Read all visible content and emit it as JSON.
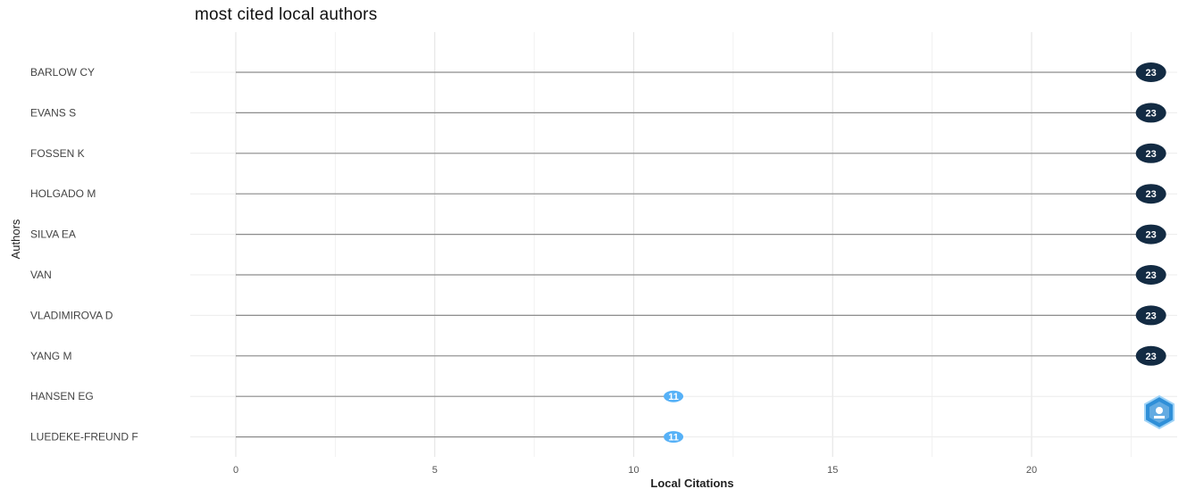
{
  "title": "most cited local authors",
  "chart_data": {
    "type": "lollipop",
    "title": "most cited local authors",
    "xlabel": "Local Citations",
    "ylabel": "Authors",
    "xlim": [
      -1,
      23.5
    ],
    "x_ticks": [
      0,
      5,
      10,
      15,
      20
    ],
    "grid": true,
    "categories": [
      "BARLOW CY",
      "EVANS S",
      "FOSSEN K",
      "HOLGADO M",
      "SILVA EA",
      "VAN",
      "VLADIMIROVA D",
      "YANG M",
      "HANSEN EG",
      "LUEDEKE-FREUND F"
    ],
    "values": [
      23,
      23,
      23,
      23,
      23,
      23,
      23,
      23,
      11,
      11
    ],
    "point_labels": [
      "23",
      "23",
      "23",
      "23",
      "23",
      "23",
      "23",
      "23",
      "11",
      "11"
    ],
    "color_scale": {
      "high": "#132b43",
      "low": "#56b1f7"
    }
  }
}
